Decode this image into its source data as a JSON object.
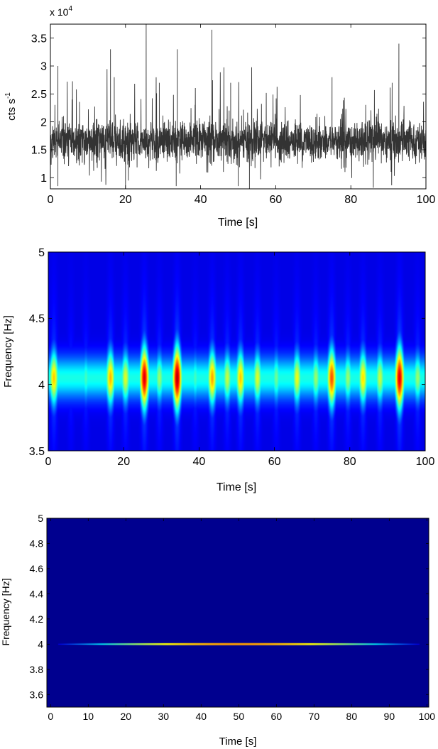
{
  "chart_data": [
    {
      "type": "line",
      "panel": "light-curve",
      "xlabel": "Time [s]",
      "ylabel": "cts s",
      "ylabel_superscript": "-1",
      "exponent_label": "x 10",
      "exponent_power": "4",
      "xlim": [
        0,
        100
      ],
      "ylim": [
        0.8,
        3.75
      ],
      "x_ticks": [
        0,
        20,
        40,
        60,
        80,
        100
      ],
      "y_ticks": [
        1,
        1.5,
        2,
        2.5,
        3,
        3.5
      ],
      "y_tick_labels": [
        "1",
        "1.5",
        "2",
        "2.5",
        "3",
        "3.5"
      ],
      "grid": false,
      "series_color": "#333333",
      "series": [
        {
          "baseline": 1.65,
          "noise_sigma": 0.18,
          "sampling_step": 0.04,
          "peaks": [
            {
              "x": 2,
              "y": 3.0
            },
            {
              "x": 16,
              "y": 3.3
            },
            {
              "x": 17,
              "y": 2.8
            },
            {
              "x": 25.5,
              "y": 3.75
            },
            {
              "x": 29,
              "y": 2.7
            },
            {
              "x": 33.8,
              "y": 3.3
            },
            {
              "x": 43,
              "y": 3.65
            },
            {
              "x": 48,
              "y": 2.7
            },
            {
              "x": 75,
              "y": 2.8
            },
            {
              "x": 91,
              "y": 2.7
            },
            {
              "x": 92.8,
              "y": 3.4
            }
          ],
          "dips": [
            {
              "x": 2,
              "y": 0.85
            },
            {
              "x": 20,
              "y": 0.8
            },
            {
              "x": 33.5,
              "y": 0.85
            },
            {
              "x": 50,
              "y": 0.85
            },
            {
              "x": 53,
              "y": 0.8
            },
            {
              "x": 86,
              "y": 0.82
            }
          ]
        }
      ]
    },
    {
      "type": "heatmap",
      "panel": "wavelet-spectrogram",
      "xlabel": "Time [s]",
      "ylabel": "Frequency [Hz]",
      "xlim": [
        0,
        100
      ],
      "ylim": [
        3.5,
        5
      ],
      "x_ticks": [
        0,
        20,
        40,
        60,
        80,
        100
      ],
      "y_ticks": [
        3.5,
        4,
        4.5,
        5
      ],
      "y_tick_labels": [
        "3.5",
        "4",
        "4.5",
        "5"
      ],
      "colormap": "jet",
      "band_center": 4.05,
      "band_width": 0.14,
      "background_level": 0.1,
      "hotspots": [
        {
          "t": 1.5,
          "f": 4.05,
          "intensity": 0.68
        },
        {
          "t": 6,
          "f": 4.05,
          "intensity": 0.35
        },
        {
          "t": 10,
          "f": 4.05,
          "intensity": 0.4
        },
        {
          "t": 16.5,
          "f": 4.05,
          "intensity": 0.7
        },
        {
          "t": 20.5,
          "f": 4.05,
          "intensity": 0.58
        },
        {
          "t": 25.5,
          "f": 4.05,
          "intensity": 0.95
        },
        {
          "t": 29.5,
          "f": 4.05,
          "intensity": 0.5
        },
        {
          "t": 34.2,
          "f": 4.08,
          "intensity": 1.0
        },
        {
          "t": 39,
          "f": 4.05,
          "intensity": 0.4
        },
        {
          "t": 43.5,
          "f": 4.05,
          "intensity": 0.72
        },
        {
          "t": 47.5,
          "f": 4.05,
          "intensity": 0.55
        },
        {
          "t": 51,
          "f": 4.05,
          "intensity": 0.68
        },
        {
          "t": 55.5,
          "f": 4.05,
          "intensity": 0.58
        },
        {
          "t": 60.5,
          "f": 4.05,
          "intensity": 0.45
        },
        {
          "t": 66,
          "f": 4.05,
          "intensity": 0.6
        },
        {
          "t": 71,
          "f": 4.05,
          "intensity": 0.5
        },
        {
          "t": 75.2,
          "f": 4.05,
          "intensity": 0.82
        },
        {
          "t": 79.5,
          "f": 4.05,
          "intensity": 0.5
        },
        {
          "t": 83.5,
          "f": 4.05,
          "intensity": 0.65
        },
        {
          "t": 88,
          "f": 4.05,
          "intensity": 0.55
        },
        {
          "t": 93.2,
          "f": 4.07,
          "intensity": 0.95
        },
        {
          "t": 98,
          "f": 4.05,
          "intensity": 0.5
        }
      ]
    },
    {
      "type": "heatmap",
      "panel": "fourier-spectrogram",
      "xlabel": "Time [s]",
      "ylabel": "Frequency [Hz]",
      "xlim": [
        -1,
        100.5
      ],
      "ylim": [
        3.5,
        5
      ],
      "x_ticks": [
        0,
        10,
        20,
        30,
        40,
        50,
        60,
        70,
        80,
        90,
        100
      ],
      "y_ticks": [
        3.6,
        3.8,
        4,
        4.2,
        4.4,
        4.6,
        4.8,
        5
      ],
      "y_tick_labels": [
        "3.6",
        "3.8",
        "4",
        "4.2",
        "4.4",
        "4.6",
        "4.8",
        "5"
      ],
      "colormap": "jet",
      "background_color": "#00008f",
      "line_frequency": 4.0,
      "line_center_time": 50,
      "line_halfwidth_time": 48,
      "line_peak_intensity": 0.6
    }
  ]
}
